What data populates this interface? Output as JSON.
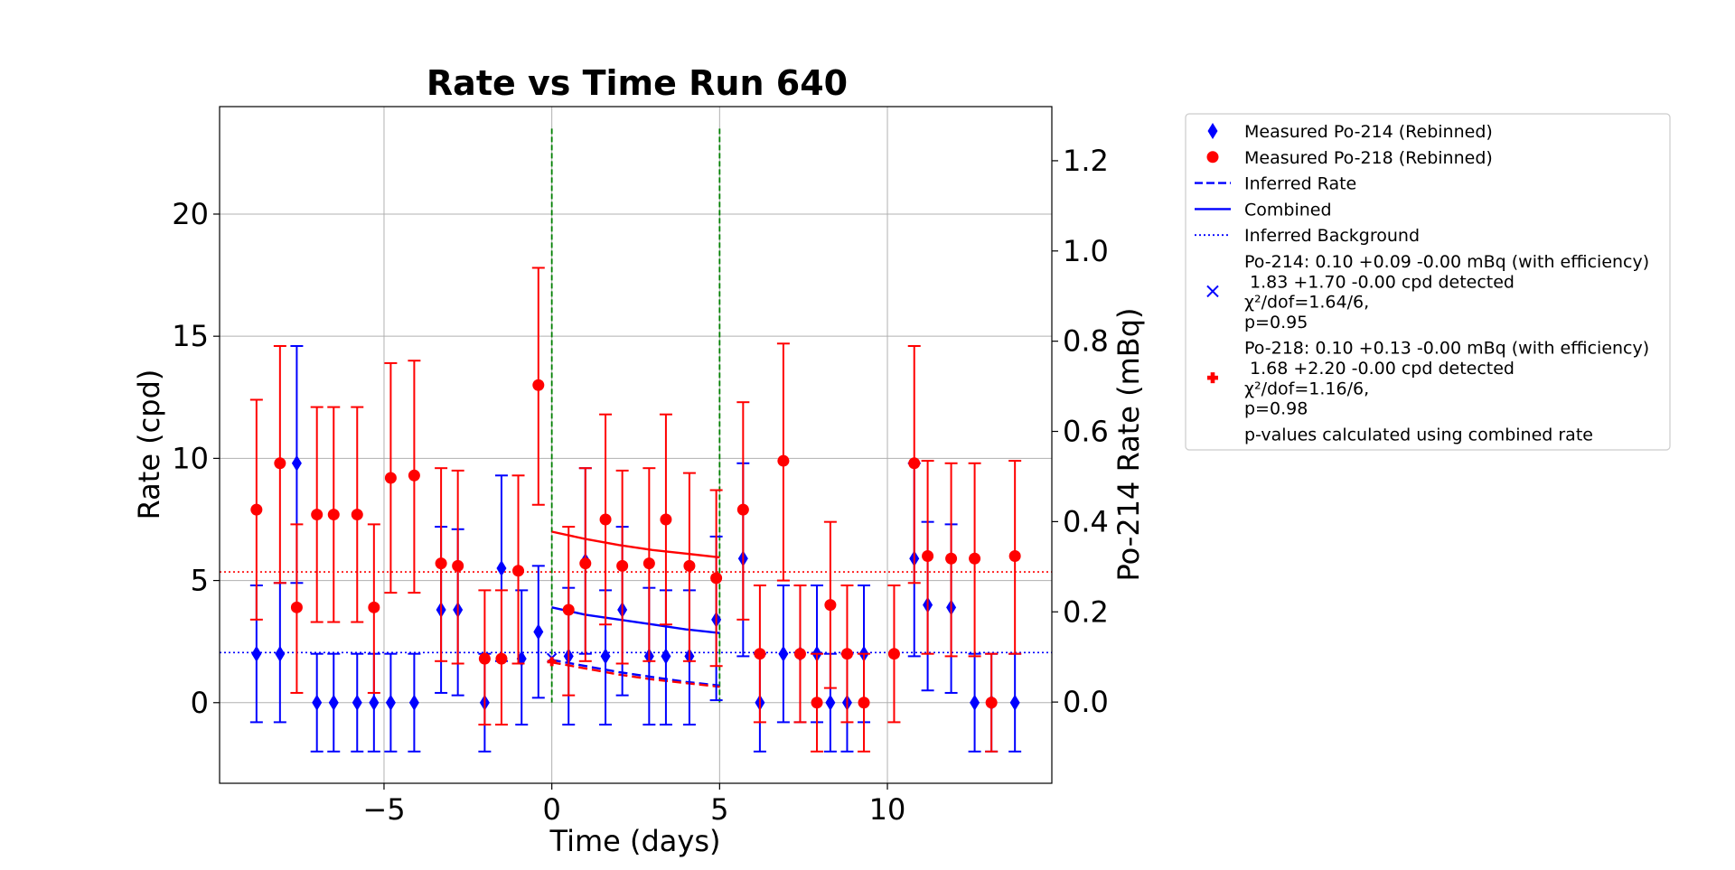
{
  "chart_data": {
    "type": "scatter",
    "title": "Rate vs Time Run 640",
    "xlabel": "Time (days)",
    "ylabel": "Rate (cpd)",
    "y2label": "Po-214 Rate (mBq)",
    "xlim": [
      -9.9,
      14.9
    ],
    "ylim": [
      -3.3,
      24.4
    ],
    "y2lim": [
      -0.18,
      1.32
    ],
    "xticks": [
      -5,
      0,
      5,
      10
    ],
    "xtick_labels": [
      "−5",
      "0",
      "5",
      "10"
    ],
    "yticks": [
      0,
      5,
      10,
      15,
      20
    ],
    "ytick_labels": [
      "0",
      "5",
      "10",
      "15",
      "20"
    ],
    "y2ticks": [
      0.0,
      0.2,
      0.4,
      0.6,
      0.8,
      1.0,
      1.2
    ],
    "y2tick_labels": [
      "0.0",
      "0.2",
      "0.4",
      "0.6",
      "0.8",
      "1.0",
      "1.2"
    ],
    "grid": true,
    "legend_position": "outside-right",
    "colors": {
      "po214": "#0000ff",
      "po218": "#ff0000",
      "window": "#008000",
      "grid": "#b0b0b0"
    },
    "window_lines": [
      0,
      5
    ],
    "window_top": 23.5,
    "series": [
      {
        "name": "Measured Po-214 (Rebinned)",
        "marker": "diamond",
        "color": "#0000ff",
        "points": [
          [
            -8.8,
            2.0,
            4.8,
            -0.8
          ],
          [
            -8.1,
            2.0,
            4.9,
            -0.8
          ],
          [
            -7.6,
            9.8,
            14.6,
            4.9
          ],
          [
            -7.0,
            0.0,
            2.0,
            -2.0
          ],
          [
            -6.5,
            0.0,
            2.0,
            -2.0
          ],
          [
            -5.8,
            0.0,
            2.0,
            -2.0
          ],
          [
            -5.3,
            0.0,
            2.0,
            -2.0
          ],
          [
            -4.8,
            0.0,
            2.0,
            -2.0
          ],
          [
            -4.1,
            0.0,
            2.0,
            -2.0
          ],
          [
            -3.3,
            3.8,
            7.2,
            0.4
          ],
          [
            -2.8,
            3.8,
            7.1,
            0.3
          ],
          [
            -2.0,
            0.0,
            2.0,
            -2.0
          ],
          [
            -1.5,
            5.5,
            9.3,
            1.7
          ],
          [
            -0.9,
            1.8,
            4.6,
            -0.9
          ],
          [
            -0.4,
            2.9,
            5.6,
            0.2
          ],
          [
            0.5,
            1.9,
            4.7,
            -0.9
          ],
          [
            1.0,
            5.8,
            9.6,
            2.0
          ],
          [
            1.6,
            1.9,
            4.6,
            -0.9
          ],
          [
            2.1,
            3.8,
            7.2,
            0.3
          ],
          [
            2.9,
            1.9,
            4.7,
            -0.9
          ],
          [
            3.4,
            1.9,
            4.6,
            -0.9
          ],
          [
            4.1,
            1.9,
            4.6,
            -0.9
          ],
          [
            4.9,
            3.4,
            6.8,
            0.1
          ],
          [
            5.7,
            5.9,
            9.8,
            1.9
          ],
          [
            6.2,
            0.0,
            2.0,
            -2.0
          ],
          [
            6.9,
            2.0,
            4.8,
            -0.8
          ],
          [
            7.4,
            2.0,
            4.8,
            -0.8
          ],
          [
            7.9,
            2.0,
            4.8,
            -0.8
          ],
          [
            8.3,
            0.0,
            2.0,
            -2.0
          ],
          [
            8.8,
            0.0,
            2.0,
            -2.0
          ],
          [
            9.3,
            2.0,
            4.8,
            -0.8
          ],
          [
            10.8,
            5.9,
            9.8,
            1.9
          ],
          [
            11.2,
            4.0,
            7.4,
            0.5
          ],
          [
            11.9,
            3.9,
            7.3,
            0.4
          ],
          [
            12.6,
            0.0,
            2.0,
            -2.0
          ],
          [
            13.1,
            0.0,
            2.0,
            -2.0
          ],
          [
            13.8,
            0.0,
            2.0,
            -2.0
          ]
        ]
      },
      {
        "name": "Measured Po-218 (Rebinned)",
        "marker": "circle",
        "color": "#ff0000",
        "points": [
          [
            -8.8,
            7.9,
            12.4,
            3.4
          ],
          [
            -8.1,
            9.8,
            14.6,
            4.9
          ],
          [
            -7.6,
            3.9,
            7.3,
            0.4
          ],
          [
            -7.0,
            7.7,
            12.1,
            3.3
          ],
          [
            -6.5,
            7.7,
            12.1,
            3.3
          ],
          [
            -5.8,
            7.7,
            12.1,
            3.3
          ],
          [
            -5.3,
            3.9,
            7.3,
            0.4
          ],
          [
            -4.8,
            9.2,
            13.9,
            4.5
          ],
          [
            -4.1,
            9.3,
            14.0,
            4.5
          ],
          [
            -3.3,
            5.7,
            9.6,
            1.7
          ],
          [
            -2.8,
            5.6,
            9.5,
            1.6
          ],
          [
            -2.0,
            1.8,
            4.6,
            -0.9
          ],
          [
            -1.5,
            1.8,
            4.6,
            -0.9
          ],
          [
            -1.0,
            5.4,
            9.3,
            1.6
          ],
          [
            -0.4,
            13.0,
            17.8,
            8.1
          ],
          [
            0.5,
            3.8,
            7.2,
            0.3
          ],
          [
            1.0,
            5.7,
            9.6,
            1.7
          ],
          [
            1.6,
            7.5,
            11.8,
            3.2
          ],
          [
            2.1,
            5.6,
            9.5,
            1.6
          ],
          [
            2.9,
            5.7,
            9.6,
            1.7
          ],
          [
            3.4,
            7.5,
            11.8,
            3.2
          ],
          [
            4.1,
            5.6,
            9.4,
            1.7
          ],
          [
            4.9,
            5.1,
            8.7,
            1.5
          ],
          [
            5.7,
            7.9,
            12.3,
            3.4
          ],
          [
            6.2,
            2.0,
            4.8,
            -0.8
          ],
          [
            6.9,
            9.9,
            14.7,
            5.0
          ],
          [
            7.4,
            2.0,
            4.8,
            -0.8
          ],
          [
            7.9,
            0.0,
            2.0,
            -2.0
          ],
          [
            8.3,
            4.0,
            7.4,
            0.6
          ],
          [
            8.8,
            2.0,
            4.8,
            -0.8
          ],
          [
            9.3,
            0.0,
            2.0,
            -2.0
          ],
          [
            10.2,
            2.0,
            4.8,
            -0.8
          ],
          [
            10.8,
            9.8,
            14.6,
            4.9
          ],
          [
            11.2,
            6.0,
            9.9,
            2.0
          ],
          [
            11.9,
            5.9,
            9.8,
            1.9
          ],
          [
            12.6,
            5.9,
            9.8,
            1.9
          ],
          [
            13.1,
            0.0,
            2.0,
            -2.0
          ],
          [
            13.8,
            6.0,
            9.9,
            2.0
          ]
        ]
      }
    ],
    "fit_curves": [
      {
        "name": "Combined",
        "color": "#0000ff",
        "style": "solid",
        "x": [
          0,
          1,
          2,
          3,
          4,
          5
        ],
        "y": [
          3.9,
          3.6,
          3.4,
          3.2,
          3.0,
          2.85
        ]
      },
      {
        "name": "Combined",
        "color": "#ff0000",
        "style": "solid",
        "x": [
          0,
          1,
          2,
          3,
          4,
          5
        ],
        "y": [
          7.0,
          6.7,
          6.45,
          6.25,
          6.1,
          5.95
        ]
      },
      {
        "name": "Inferred Rate",
        "color": "#0000ff",
        "style": "dashed",
        "x": [
          0,
          1,
          2,
          3,
          4,
          5
        ],
        "y": [
          1.75,
          1.5,
          1.25,
          1.05,
          0.85,
          0.7
        ]
      },
      {
        "name": "Inferred Rate",
        "color": "#ff0000",
        "style": "dashed",
        "x": [
          0,
          1,
          2,
          3,
          4,
          5
        ],
        "y": [
          1.65,
          1.4,
          1.15,
          0.95,
          0.8,
          0.65
        ]
      }
    ],
    "backgrounds": [
      {
        "name": "Inferred Background",
        "color": "#0000ff",
        "y": 2.05
      },
      {
        "name": "Inferred Background",
        "color": "#ff0000",
        "y": 5.35
      }
    ],
    "legend": [
      {
        "kind": "diamond",
        "color": "#0000ff",
        "lines": [
          "Measured Po-214 (Rebinned)"
        ]
      },
      {
        "kind": "circle",
        "color": "#ff0000",
        "lines": [
          "Measured Po-218 (Rebinned)"
        ]
      },
      {
        "kind": "dashed",
        "color": "#0000ff",
        "lines": [
          "Inferred Rate"
        ]
      },
      {
        "kind": "solid",
        "color": "#0000ff",
        "lines": [
          "Combined"
        ]
      },
      {
        "kind": "dotted",
        "color": "#0000ff",
        "lines": [
          "Inferred Background"
        ]
      },
      {
        "kind": "x",
        "color": "#0000ff",
        "lines": [
          "Po-214: 0.10 +0.09 -0.00 mBq (with efficiency)",
          " 1.83 +1.70 -0.00 cpd detected",
          "χ²/dof=1.64/6,",
          "p=0.95"
        ]
      },
      {
        "kind": "plus",
        "color": "#ff0000",
        "lines": [
          "Po-218: 0.10 +0.13 -0.00 mBq (with efficiency)",
          " 1.68 +2.20 -0.00 cpd detected",
          "χ²/dof=1.16/6,",
          "p=0.98"
        ]
      },
      {
        "kind": "none",
        "color": "#000000",
        "lines": [
          "p-values calculated using combined rate"
        ]
      }
    ],
    "annotation_markers": [
      {
        "kind": "x",
        "color": "#0000ff",
        "x": 0.0,
        "y": 1.83
      },
      {
        "kind": "plus",
        "color": "#ff0000",
        "x": 0.0,
        "y": 1.68
      }
    ]
  }
}
